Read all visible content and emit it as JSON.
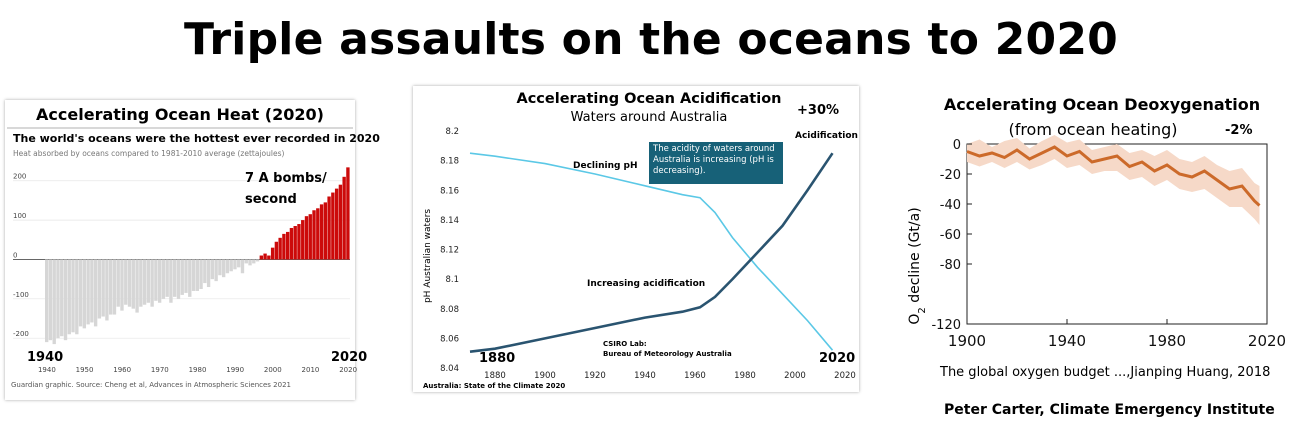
{
  "title": "Triple assaults on the oceans to 2020",
  "credit": "Peter Carter, Climate Emergency Institute",
  "colors": {
    "heat_pos": "#cc0a0a",
    "heat_neg": "#d6d6d6",
    "acid_light": "#5bc8e6",
    "acid_dark": "#2a5470",
    "oxy_line": "#cc6a2a",
    "oxy_band": "#f6d9c8",
    "callout_bg": "#176178"
  },
  "chart_data": [
    {
      "type": "bar",
      "title": "Accelerating Ocean Heat (2020)",
      "subtitle": "The world's oceans were the hottest ever recorded in 2020",
      "description": "Heat absorbed by oceans compared to 1981-2010 average (zettajoules)",
      "annotation": [
        "7 A bombs/",
        "second"
      ],
      "start_label": "1940",
      "end_label": "2020",
      "source": "Guardian graphic. Source: Cheng et al, Advances in Atmospheric Sciences 2021",
      "y_ticks": [
        "200",
        "100",
        "0",
        "-100",
        "-200"
      ],
      "x_ticks": [
        "1940",
        "1950",
        "1960",
        "1970",
        "1980",
        "1990",
        "2000",
        "2010",
        "2020"
      ],
      "ylim": [
        -230,
        240
      ],
      "x": [
        1940,
        1941,
        1942,
        1943,
        1944,
        1945,
        1946,
        1947,
        1948,
        1949,
        1950,
        1951,
        1952,
        1953,
        1954,
        1955,
        1956,
        1957,
        1958,
        1959,
        1960,
        1961,
        1962,
        1963,
        1964,
        1965,
        1966,
        1967,
        1968,
        1969,
        1970,
        1971,
        1972,
        1973,
        1974,
        1975,
        1976,
        1977,
        1978,
        1979,
        1980,
        1981,
        1982,
        1983,
        1984,
        1985,
        1986,
        1987,
        1988,
        1989,
        1990,
        1991,
        1992,
        1993,
        1994,
        1995,
        1996,
        1997,
        1998,
        1999,
        2000,
        2001,
        2002,
        2003,
        2004,
        2005,
        2006,
        2007,
        2008,
        2009,
        2010,
        2011,
        2012,
        2013,
        2014,
        2015,
        2016,
        2017,
        2018,
        2019,
        2020
      ],
      "values": [
        -210,
        -205,
        -215,
        -200,
        -195,
        -205,
        -190,
        -185,
        -190,
        -170,
        -175,
        -165,
        -160,
        -170,
        -150,
        -145,
        -155,
        -140,
        -140,
        -120,
        -130,
        -115,
        -120,
        -125,
        -135,
        -120,
        -115,
        -110,
        -120,
        -105,
        -110,
        -100,
        -95,
        -110,
        -95,
        -100,
        -90,
        -85,
        -95,
        -80,
        -80,
        -75,
        -60,
        -70,
        -50,
        -55,
        -40,
        -45,
        -35,
        -30,
        -25,
        -20,
        -35,
        -10,
        -15,
        -10,
        -5,
        10,
        15,
        10,
        30,
        45,
        55,
        65,
        70,
        80,
        85,
        90,
        100,
        110,
        115,
        125,
        130,
        140,
        145,
        160,
        170,
        180,
        190,
        210,
        234
      ]
    },
    {
      "type": "line",
      "title": "Accelerating Ocean Acidification",
      "subtitle": "Waters around Australia",
      "increase_label": "+30%",
      "acidification_label": "Acidification",
      "ylabel": "pH Australian waters",
      "line1_label": "Declining pH",
      "line2_label": "Increasing acidification",
      "callout": "The acidity of waters around Australia is increasing (pH is decreasing).",
      "lab_label_1": "CSIRO Lab:",
      "lab_label_2": "Bureau of Meteorology  Australia",
      "start_label": "1880",
      "end_label": "2020",
      "source": "Australia: State of the Climate 2020",
      "y_ticks": [
        "8.2",
        "8.18",
        "8.16",
        "8.14",
        "8.12",
        "8.1",
        "8.08",
        "8.06",
        "8.04"
      ],
      "x_ticks": [
        "1880",
        "1900",
        "1920",
        "1940",
        "1960",
        "1980",
        "2000",
        "2020"
      ],
      "xlim": [
        1868,
        2020
      ],
      "ylim": [
        8.04,
        8.2
      ],
      "series": [
        {
          "name": "Declining pH",
          "x": [
            1870,
            1880,
            1900,
            1920,
            1940,
            1955,
            1962,
            1968,
            1975,
            1985,
            1995,
            2005,
            2015
          ],
          "values": [
            8.185,
            8.183,
            8.178,
            8.171,
            8.163,
            8.157,
            8.155,
            8.145,
            8.128,
            8.108,
            8.09,
            8.072,
            8.052
          ]
        },
        {
          "name": "Increasing acidification",
          "x": [
            1870,
            1880,
            1900,
            1920,
            1940,
            1955,
            1962,
            1968,
            1975,
            1985,
            1995,
            2005,
            2015
          ],
          "values": [
            8.051,
            8.053,
            8.06,
            8.067,
            8.074,
            8.078,
            8.081,
            8.088,
            8.1,
            8.118,
            8.136,
            8.16,
            8.185
          ]
        }
      ]
    },
    {
      "type": "line",
      "title": "Accelerating Ocean Deoxygenation",
      "subtitle": "(from ocean heating)",
      "change_label": "-2%",
      "ylabel_main": "O",
      "ylabel_sub": "2",
      "ylabel_rest": " decline (Gt/a)",
      "source": "The global oxygen budget ...,Jianping Huang, 2018",
      "y_ticks": [
        "0",
        "-20",
        "-40",
        "-60",
        "-80",
        "-120"
      ],
      "x_ticks": [
        "1900",
        "1940",
        "1980",
        "2020"
      ],
      "xlim": [
        1900,
        2020
      ],
      "ylim": [
        -120,
        0
      ],
      "x": [
        1900,
        1905,
        1910,
        1915,
        1920,
        1925,
        1930,
        1935,
        1940,
        1945,
        1950,
        1955,
        1960,
        1965,
        1970,
        1975,
        1980,
        1985,
        1990,
        1995,
        2000,
        2005,
        2010,
        2015,
        2017
      ],
      "values": [
        -5,
        -8,
        -6,
        -9,
        -4,
        -10,
        -6,
        -2,
        -8,
        -5,
        -12,
        -10,
        -8,
        -15,
        -12,
        -18,
        -14,
        -20,
        -22,
        -18,
        -24,
        -30,
        -28,
        -38,
        -41
      ],
      "band_upper": [
        0,
        3,
        -2,
        2,
        4,
        -3,
        2,
        6,
        1,
        3,
        -4,
        -2,
        0,
        -6,
        -4,
        -8,
        -4,
        -10,
        -12,
        -8,
        -14,
        -18,
        -16,
        -26,
        -28
      ],
      "band_lower": [
        -12,
        -15,
        -12,
        -16,
        -12,
        -17,
        -14,
        -10,
        -16,
        -14,
        -20,
        -18,
        -18,
        -24,
        -22,
        -28,
        -24,
        -30,
        -32,
        -30,
        -36,
        -42,
        -42,
        -50,
        -54
      ]
    }
  ]
}
